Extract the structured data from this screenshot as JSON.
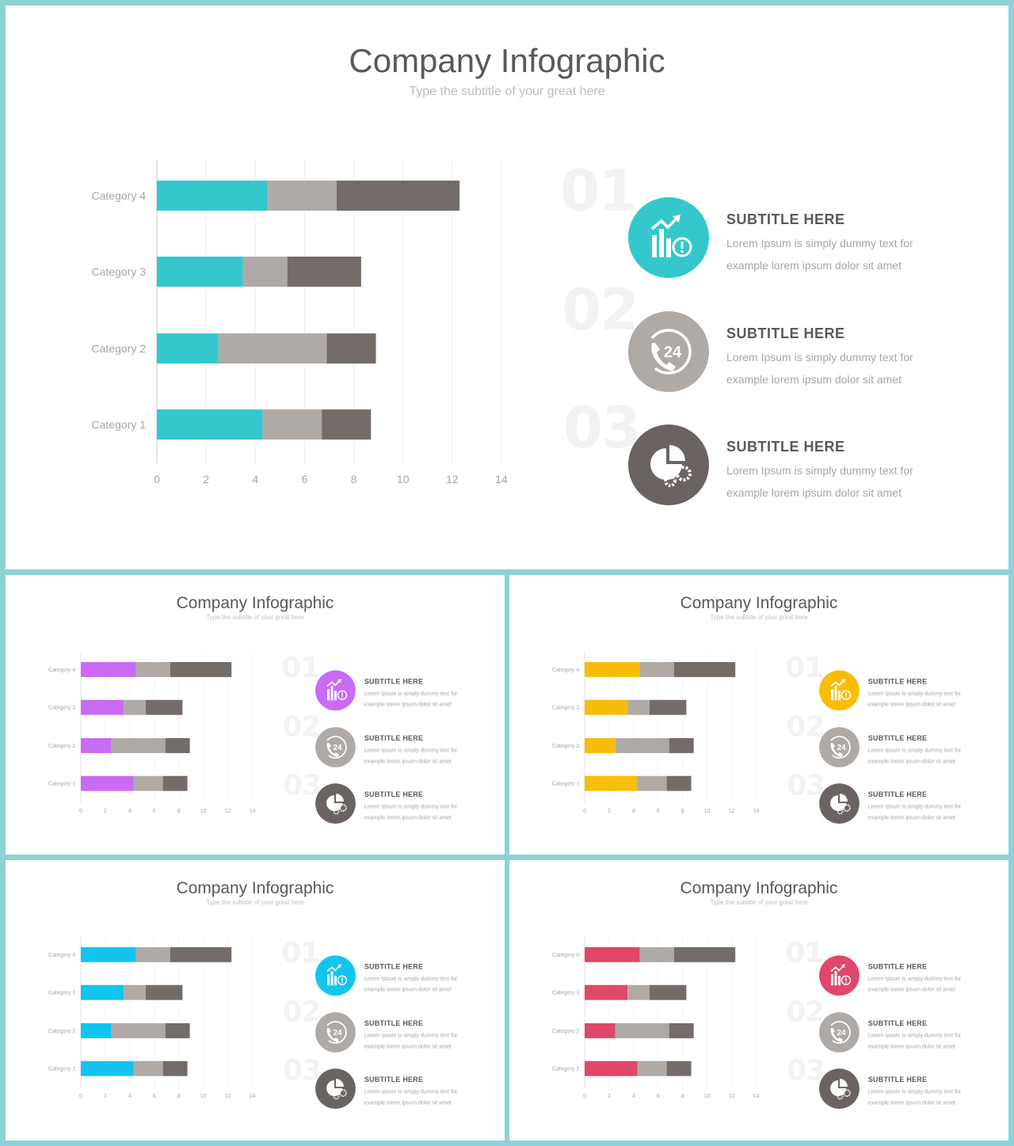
{
  "title": "Company Infographic",
  "subtitle": "Type the subtitle of your great here",
  "chart_data": {
    "type": "bar",
    "orientation": "horizontal",
    "stacked": true,
    "categories": [
      "Category 4",
      "Category 3",
      "Category 2",
      "Category 1"
    ],
    "series": [
      {
        "values": [
          4.5,
          3.5,
          2.5,
          4.3
        ]
      },
      {
        "values": [
          2.8,
          1.8,
          4.4,
          2.4
        ]
      },
      {
        "values": [
          5.0,
          3.0,
          2.0,
          2.0
        ]
      }
    ],
    "xticks": [
      "0",
      "2",
      "4",
      "6",
      "8",
      "10",
      "12",
      "14"
    ],
    "xlim": [
      0,
      14
    ],
    "grid": true,
    "legend": false
  },
  "items": [
    {
      "number": "01",
      "title": "SUBTITLE HERE",
      "text": "Lorem Ipsum is simply dummy  text for example lorem ipsum dolor sit amet",
      "icon": "chart-growth-icon"
    },
    {
      "number": "02",
      "title": "SUBTITLE HERE",
      "text": "Lorem Ipsum is simply dummy  text for example lorem ipsum dolor sit amet",
      "icon": "phone-24-icon"
    },
    {
      "number": "03",
      "title": "SUBTITLE HERE",
      "text": "Lorem Ipsum is simply dummy  text for example lorem ipsum dolor sit amet",
      "icon": "pie-gears-icon"
    }
  ],
  "colors": {
    "series2": "#b0aaa7",
    "series3": "#746c69",
    "item2": "#b0aaa7",
    "item3": "#6a6361",
    "grid": "#ececec",
    "axis": "#d9d9d9",
    "labels": "#a6a6a6"
  },
  "variants": [
    {
      "name": "teal",
      "accent": "#34c8cc"
    },
    {
      "name": "purple",
      "accent": "#c86bf5"
    },
    {
      "name": "yellow",
      "accent": "#f8bd09"
    },
    {
      "name": "cyan",
      "accent": "#12c4f0"
    },
    {
      "name": "crimson",
      "accent": "#e04769"
    }
  ]
}
